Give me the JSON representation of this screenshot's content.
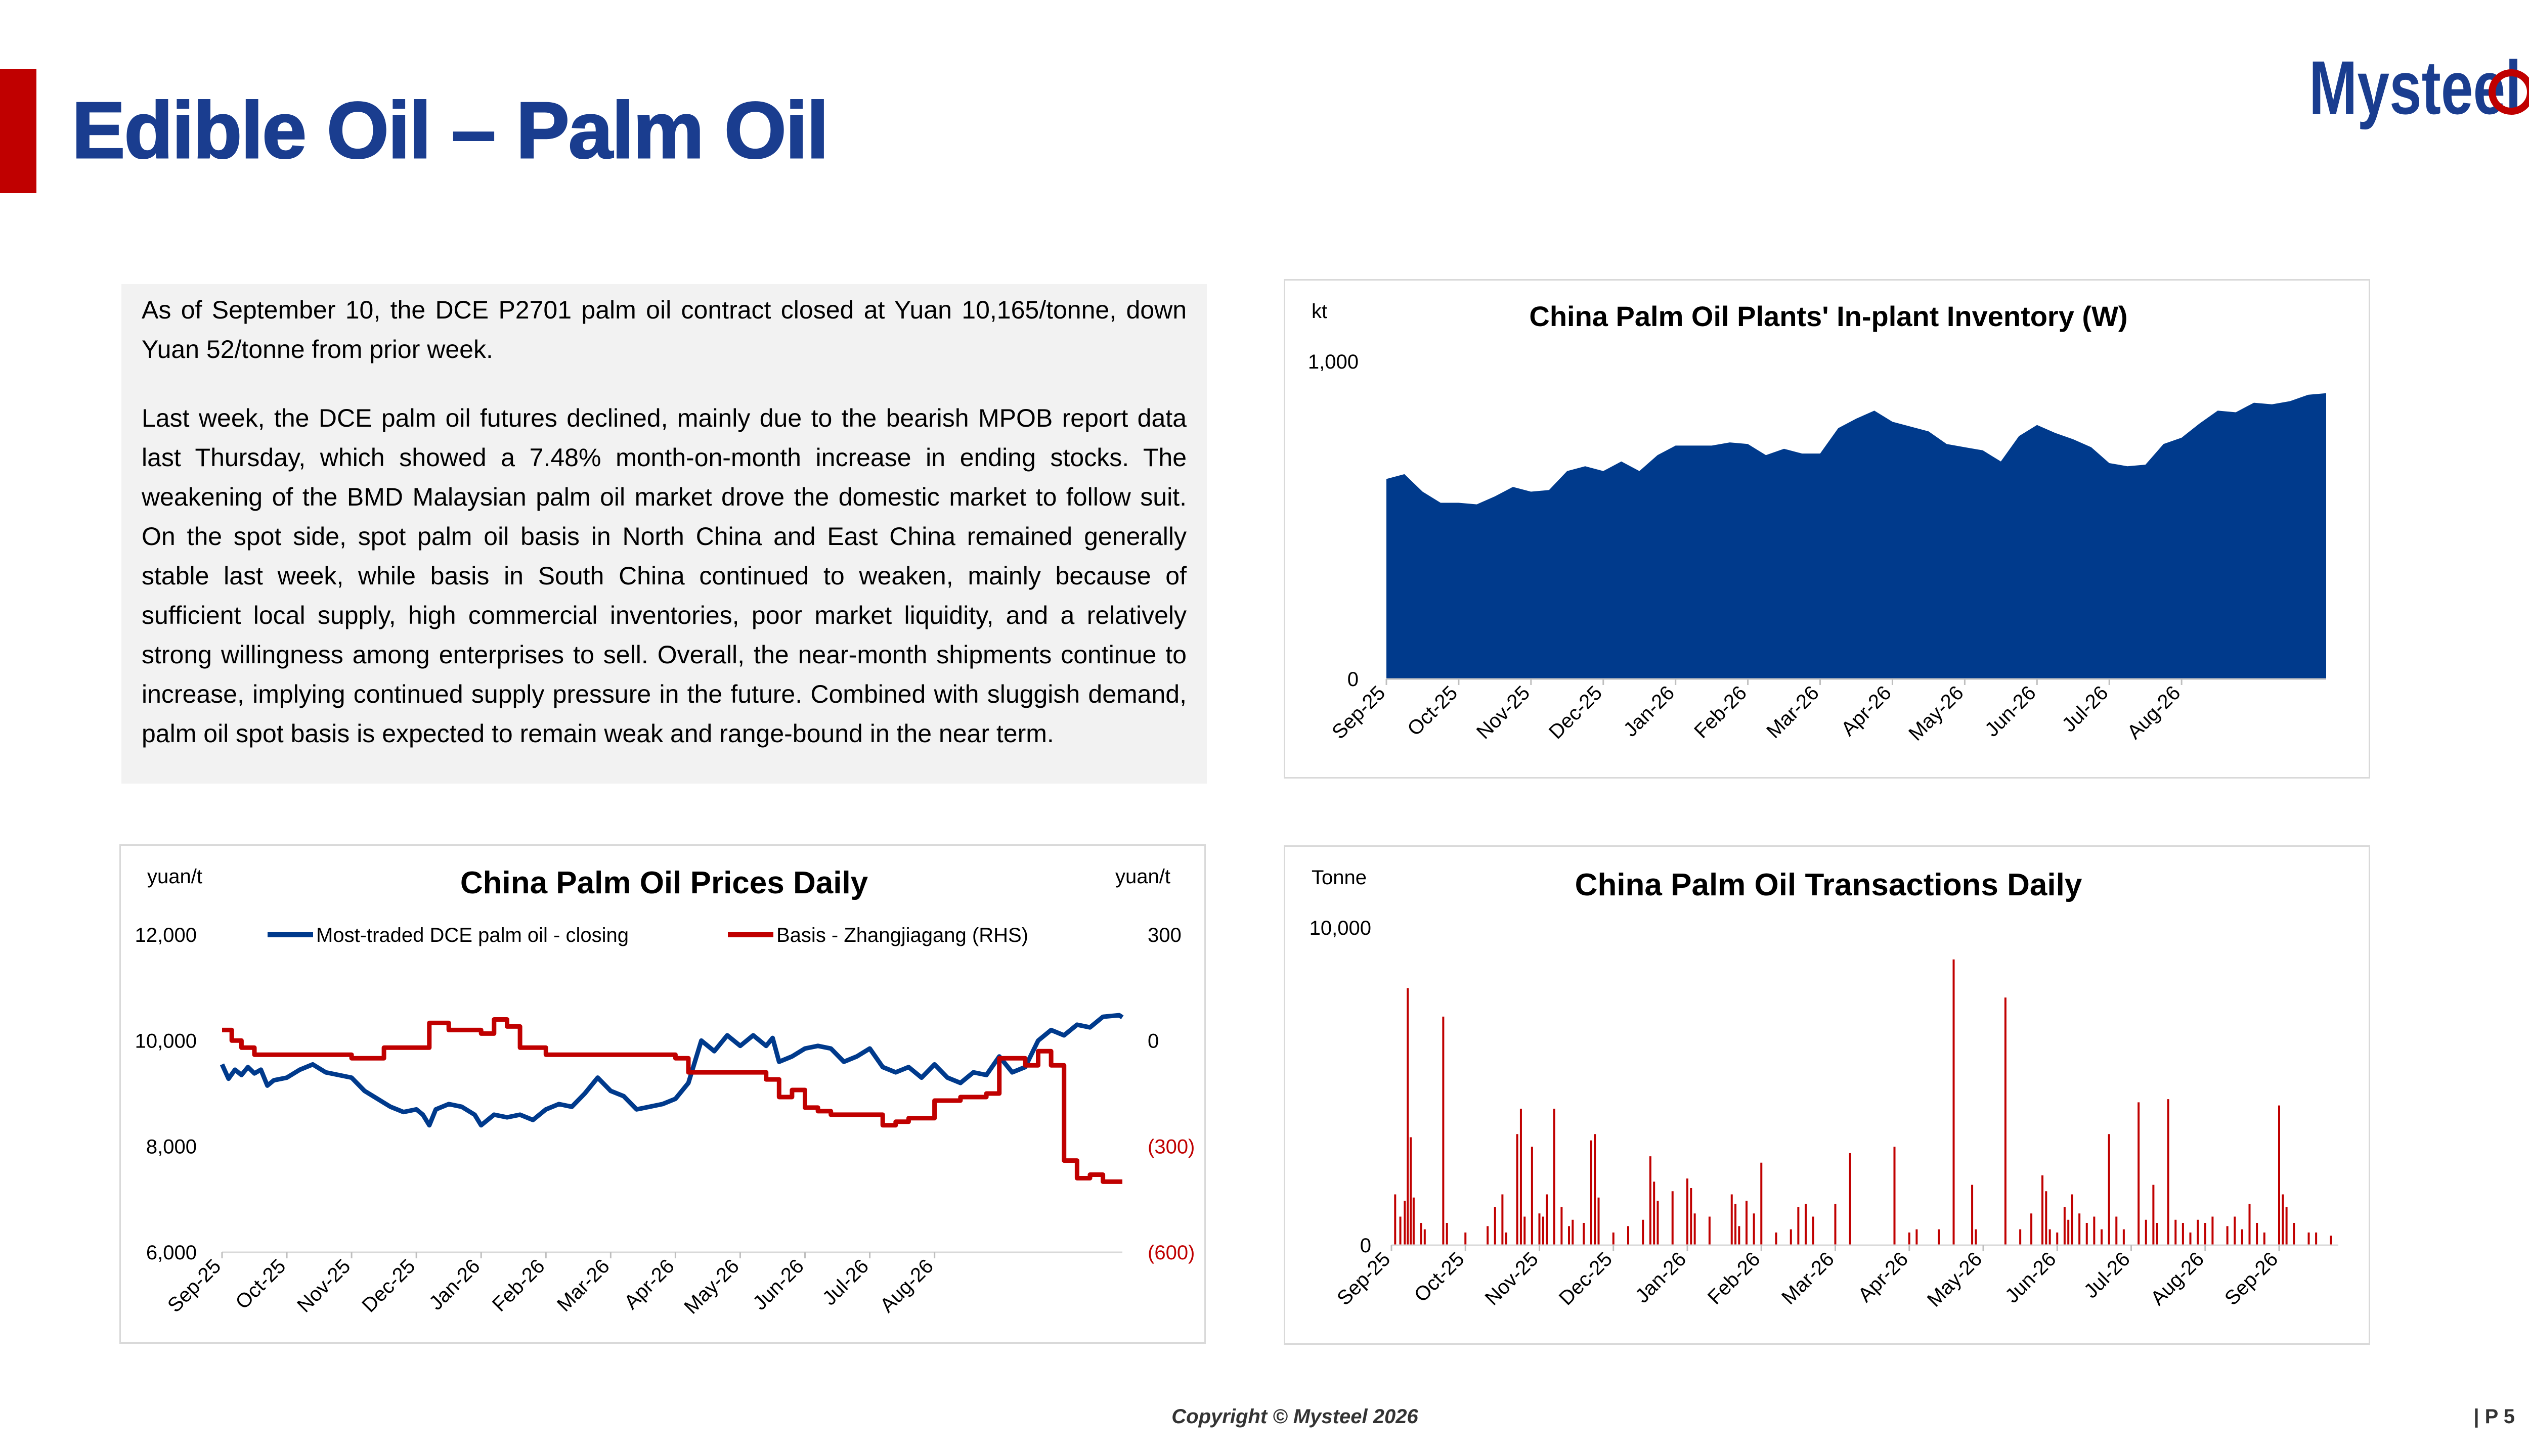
{
  "page": {
    "title": "Edible Oil – Palm Oil",
    "logo_text": "Mysteel",
    "copyright": "Copyright © Mysteel 2026",
    "page_number": "| P 5",
    "colors": {
      "title": "#1a3d8f",
      "accent": "#c00000",
      "navy": "#003a8c",
      "red": "#c00000"
    }
  },
  "summary": {
    "paragraphs": [
      "As of September 10, the DCE P2701 palm oil contract closed at Yuan 10,165/tonne, down Yuan 52/tonne from prior week.",
      "Last week, the DCE palm oil futures declined, mainly due to the bearish MPOB report data last Thursday, which showed a 7.48% month-on-month increase in ending stocks. The weakening of the BMD Malaysian palm oil market drove the domestic market to follow suit. On the spot side, spot palm oil basis in North China and East China remained generally stable last week, while basis in South China continued to weaken, mainly because of sufficient local supply, high commercial inventories, poor market liquidity, and a relatively strong willingness among enterprises to sell. Overall, the near-month shipments continue to increase, implying continued supply pressure in the future. Combined with sluggish demand, palm oil spot basis is expected to remain weak and range-bound in the near term."
    ]
  },
  "chart_data": [
    {
      "id": "inventory",
      "type": "area",
      "title": "China Palm Oil Plants' In-plant Inventory (W)",
      "ylabel": "kt",
      "ylim": [
        0,
        1000
      ],
      "yticks": [
        0,
        1000
      ],
      "ytick_labels": [
        "0",
        "1,000"
      ],
      "xticks": [
        "Sep-25",
        "Oct-25",
        "Nov-25",
        "Dec-25",
        "Jan-26",
        "Feb-26",
        "Mar-26",
        "Apr-26",
        "May-26",
        "Jun-26",
        "Jul-26",
        "Aug-26"
      ],
      "color": "#003a8c",
      "x_range_months": [
        0,
        12.4
      ],
      "points": [
        [
          0.0,
          630
        ],
        [
          0.25,
          645
        ],
        [
          0.5,
          590
        ],
        [
          0.75,
          555
        ],
        [
          1.0,
          555
        ],
        [
          1.25,
          550
        ],
        [
          1.5,
          575
        ],
        [
          1.75,
          605
        ],
        [
          2.0,
          590
        ],
        [
          2.25,
          595
        ],
        [
          2.5,
          655
        ],
        [
          2.75,
          670
        ],
        [
          3.0,
          655
        ],
        [
          3.25,
          685
        ],
        [
          3.5,
          655
        ],
        [
          3.75,
          705
        ],
        [
          4.0,
          735
        ],
        [
          4.25,
          735
        ],
        [
          4.5,
          735
        ],
        [
          4.75,
          745
        ],
        [
          5.0,
          740
        ],
        [
          5.25,
          705
        ],
        [
          5.5,
          725
        ],
        [
          5.75,
          710
        ],
        [
          6.0,
          710
        ],
        [
          6.25,
          790
        ],
        [
          6.5,
          820
        ],
        [
          6.75,
          845
        ],
        [
          7.0,
          810
        ],
        [
          7.25,
          795
        ],
        [
          7.5,
          780
        ],
        [
          7.75,
          740
        ],
        [
          8.0,
          730
        ],
        [
          8.25,
          720
        ],
        [
          8.5,
          685
        ],
        [
          8.75,
          765
        ],
        [
          9.0,
          800
        ],
        [
          9.25,
          775
        ],
        [
          9.5,
          755
        ],
        [
          9.75,
          730
        ],
        [
          10.0,
          680
        ],
        [
          10.25,
          670
        ],
        [
          10.5,
          675
        ],
        [
          10.75,
          740
        ],
        [
          11.0,
          760
        ],
        [
          11.25,
          805
        ],
        [
          11.5,
          845
        ],
        [
          11.75,
          840
        ],
        [
          12.0,
          870
        ],
        [
          12.25,
          865
        ],
        [
          12.5,
          875
        ],
        [
          12.75,
          895
        ],
        [
          13.0,
          900
        ]
      ]
    },
    {
      "id": "prices",
      "type": "line",
      "title": "China Palm Oil Prices Daily",
      "ylabel": "yuan/t",
      "ylabel_right": "yuan/t",
      "ylim": [
        6000,
        12000
      ],
      "yticks": [
        6000,
        8000,
        10000,
        12000
      ],
      "ytick_labels": [
        "6,000",
        "8,000",
        "10,000",
        "12,000"
      ],
      "ylim_right": [
        -600,
        300
      ],
      "yticks_right": [
        -600,
        -300,
        0,
        300
      ],
      "ytick_labels_right": [
        "(600)",
        "(300)",
        "0",
        "300"
      ],
      "xticks": [
        "Sep-25",
        "Oct-25",
        "Nov-25",
        "Dec-25",
        "Jan-26",
        "Feb-26",
        "Mar-26",
        "Apr-26",
        "May-26",
        "Jun-26",
        "Jul-26",
        "Aug-26"
      ],
      "legend_position": "top",
      "series": [
        {
          "name": "Most-traded DCE palm oil - closing",
          "axis": "left",
          "color": "#003a8c",
          "points": [
            [
              0.0,
              9550
            ],
            [
              0.1,
              9280
            ],
            [
              0.2,
              9450
            ],
            [
              0.3,
              9350
            ],
            [
              0.4,
              9500
            ],
            [
              0.5,
              9380
            ],
            [
              0.6,
              9450
            ],
            [
              0.7,
              9150
            ],
            [
              0.8,
              9250
            ],
            [
              1.0,
              9300
            ],
            [
              1.2,
              9450
            ],
            [
              1.4,
              9550
            ],
            [
              1.6,
              9400
            ],
            [
              1.8,
              9350
            ],
            [
              2.0,
              9300
            ],
            [
              2.2,
              9050
            ],
            [
              2.4,
              8900
            ],
            [
              2.6,
              8750
            ],
            [
              2.8,
              8650
            ],
            [
              3.0,
              8700
            ],
            [
              3.1,
              8600
            ],
            [
              3.2,
              8400
            ],
            [
              3.3,
              8700
            ],
            [
              3.5,
              8800
            ],
            [
              3.7,
              8750
            ],
            [
              3.9,
              8600
            ],
            [
              4.0,
              8400
            ],
            [
              4.2,
              8600
            ],
            [
              4.4,
              8550
            ],
            [
              4.6,
              8600
            ],
            [
              4.8,
              8500
            ],
            [
              5.0,
              8700
            ],
            [
              5.2,
              8800
            ],
            [
              5.4,
              8750
            ],
            [
              5.6,
              9000
            ],
            [
              5.8,
              9300
            ],
            [
              6.0,
              9050
            ],
            [
              6.2,
              8950
            ],
            [
              6.4,
              8700
            ],
            [
              6.6,
              8750
            ],
            [
              6.8,
              8800
            ],
            [
              7.0,
              8900
            ],
            [
              7.2,
              9200
            ],
            [
              7.4,
              10000
            ],
            [
              7.6,
              9800
            ],
            [
              7.8,
              10100
            ],
            [
              8.0,
              9900
            ],
            [
              8.2,
              10100
            ],
            [
              8.4,
              9900
            ],
            [
              8.5,
              10050
            ],
            [
              8.6,
              9600
            ],
            [
              8.8,
              9700
            ],
            [
              9.0,
              9850
            ],
            [
              9.2,
              9900
            ],
            [
              9.4,
              9850
            ],
            [
              9.6,
              9600
            ],
            [
              9.8,
              9700
            ],
            [
              10.0,
              9850
            ],
            [
              10.2,
              9500
            ],
            [
              10.4,
              9400
            ],
            [
              10.6,
              9500
            ],
            [
              10.8,
              9300
            ],
            [
              11.0,
              9550
            ],
            [
              11.2,
              9300
            ],
            [
              11.4,
              9200
            ],
            [
              11.6,
              9400
            ],
            [
              11.8,
              9350
            ],
            [
              12.0,
              9700
            ],
            [
              12.2,
              9400
            ],
            [
              12.4,
              9500
            ],
            [
              12.6,
              10000
            ],
            [
              12.8,
              10200
            ],
            [
              13.0,
              10100
            ],
            [
              13.2,
              10300
            ],
            [
              13.4,
              10250
            ],
            [
              13.6,
              10450
            ],
            [
              13.85,
              10480
            ],
            [
              13.9,
              10440
            ]
          ]
        },
        {
          "name": "Basis - Zhangjiagang (RHS)",
          "axis": "right",
          "color": "#c00000",
          "points": [
            [
              0.0,
              30
            ],
            [
              0.15,
              0
            ],
            [
              0.3,
              -20
            ],
            [
              0.5,
              -40
            ],
            [
              1.0,
              -40
            ],
            [
              1.5,
              -40
            ],
            [
              2.0,
              -50
            ],
            [
              2.5,
              -20
            ],
            [
              3.0,
              -20
            ],
            [
              3.2,
              50
            ],
            [
              3.5,
              30
            ],
            [
              4.0,
              20
            ],
            [
              4.2,
              60
            ],
            [
              4.4,
              40
            ],
            [
              4.6,
              -20
            ],
            [
              5.0,
              -40
            ],
            [
              5.5,
              -40
            ],
            [
              6.0,
              -40
            ],
            [
              6.5,
              -40
            ],
            [
              7.0,
              -50
            ],
            [
              7.2,
              -90
            ],
            [
              7.5,
              -90
            ],
            [
              8.0,
              -90
            ],
            [
              8.4,
              -110
            ],
            [
              8.6,
              -160
            ],
            [
              8.8,
              -140
            ],
            [
              9.0,
              -190
            ],
            [
              9.2,
              -200
            ],
            [
              9.4,
              -210
            ],
            [
              10.0,
              -210
            ],
            [
              10.2,
              -240
            ],
            [
              10.4,
              -230
            ],
            [
              10.6,
              -220
            ],
            [
              11.0,
              -170
            ],
            [
              11.4,
              -160
            ],
            [
              11.8,
              -150
            ],
            [
              12.0,
              -50
            ],
            [
              12.4,
              -70
            ],
            [
              12.6,
              -30
            ],
            [
              12.8,
              -70
            ],
            [
              13.0,
              -340
            ],
            [
              13.2,
              -390
            ],
            [
              13.4,
              -380
            ],
            [
              13.6,
              -400
            ],
            [
              13.9,
              -400
            ]
          ]
        }
      ]
    },
    {
      "id": "transactions",
      "type": "bar",
      "title": "China Palm Oil Transactions Daily",
      "ylabel": "Tonne",
      "ylim": [
        0,
        10000
      ],
      "yticks": [
        0,
        10000
      ],
      "ytick_labels": [
        "0",
        "10,000"
      ],
      "xticks": [
        "Sep-25",
        "Oct-25",
        "Nov-25",
        "Dec-25",
        "Jan-26",
        "Feb-26",
        "Mar-26",
        "Apr-26",
        "May-26",
        "Jun-26",
        "Jul-26",
        "Aug-26",
        "Sep-26"
      ],
      "color": "#c00000",
      "points": [
        [
          0.05,
          1600
        ],
        [
          0.12,
          900
        ],
        [
          0.18,
          1400
        ],
        [
          0.22,
          8100
        ],
        [
          0.26,
          3400
        ],
        [
          0.3,
          1500
        ],
        [
          0.4,
          700
        ],
        [
          0.45,
          500
        ],
        [
          0.7,
          7200
        ],
        [
          0.75,
          700
        ],
        [
          1.0,
          400
        ],
        [
          1.3,
          600
        ],
        [
          1.4,
          1200
        ],
        [
          1.5,
          1600
        ],
        [
          1.55,
          400
        ],
        [
          1.7,
          3500
        ],
        [
          1.75,
          4300
        ],
        [
          1.8,
          900
        ],
        [
          1.9,
          3100
        ],
        [
          2.0,
          1000
        ],
        [
          2.05,
          900
        ],
        [
          2.1,
          1600
        ],
        [
          2.2,
          4300
        ],
        [
          2.3,
          1200
        ],
        [
          2.4,
          600
        ],
        [
          2.45,
          800
        ],
        [
          2.6,
          700
        ],
        [
          2.7,
          3300
        ],
        [
          2.75,
          3500
        ],
        [
          2.8,
          1500
        ],
        [
          3.0,
          400
        ],
        [
          3.2,
          600
        ],
        [
          3.4,
          800
        ],
        [
          3.5,
          2800
        ],
        [
          3.55,
          2000
        ],
        [
          3.6,
          1400
        ],
        [
          3.8,
          1700
        ],
        [
          4.0,
          2100
        ],
        [
          4.05,
          1800
        ],
        [
          4.1,
          1000
        ],
        [
          4.3,
          900
        ],
        [
          4.6,
          1600
        ],
        [
          4.65,
          1300
        ],
        [
          4.7,
          600
        ],
        [
          4.8,
          1400
        ],
        [
          4.9,
          1000
        ],
        [
          5.0,
          2600
        ],
        [
          5.2,
          400
        ],
        [
          5.4,
          500
        ],
        [
          5.5,
          1200
        ],
        [
          5.6,
          1300
        ],
        [
          5.7,
          900
        ],
        [
          6.0,
          1300
        ],
        [
          6.2,
          2900
        ],
        [
          6.8,
          3100
        ],
        [
          7.0,
          400
        ],
        [
          7.1,
          500
        ],
        [
          7.4,
          500
        ],
        [
          7.6,
          9000
        ],
        [
          7.85,
          1900
        ],
        [
          7.9,
          500
        ],
        [
          8.3,
          7800
        ],
        [
          8.5,
          500
        ],
        [
          8.65,
          1000
        ],
        [
          8.8,
          2200
        ],
        [
          8.85,
          1700
        ],
        [
          8.9,
          500
        ],
        [
          9.0,
          400
        ],
        [
          9.1,
          1200
        ],
        [
          9.15,
          800
        ],
        [
          9.2,
          1600
        ],
        [
          9.3,
          1000
        ],
        [
          9.4,
          700
        ],
        [
          9.5,
          900
        ],
        [
          9.6,
          500
        ],
        [
          9.7,
          3500
        ],
        [
          9.8,
          900
        ],
        [
          9.9,
          500
        ],
        [
          10.1,
          4500
        ],
        [
          10.2,
          800
        ],
        [
          10.3,
          1900
        ],
        [
          10.35,
          700
        ],
        [
          10.5,
          4600
        ],
        [
          10.6,
          800
        ],
        [
          10.7,
          700
        ],
        [
          10.8,
          400
        ],
        [
          10.9,
          800
        ],
        [
          11.0,
          700
        ],
        [
          11.1,
          900
        ],
        [
          11.3,
          600
        ],
        [
          11.4,
          900
        ],
        [
          11.5,
          500
        ],
        [
          11.6,
          1300
        ],
        [
          11.7,
          700
        ],
        [
          11.8,
          400
        ],
        [
          12.0,
          4400
        ],
        [
          12.05,
          1600
        ],
        [
          12.1,
          1200
        ],
        [
          12.2,
          700
        ],
        [
          12.4,
          400
        ],
        [
          12.5,
          400
        ],
        [
          12.7,
          300
        ]
      ]
    }
  ]
}
